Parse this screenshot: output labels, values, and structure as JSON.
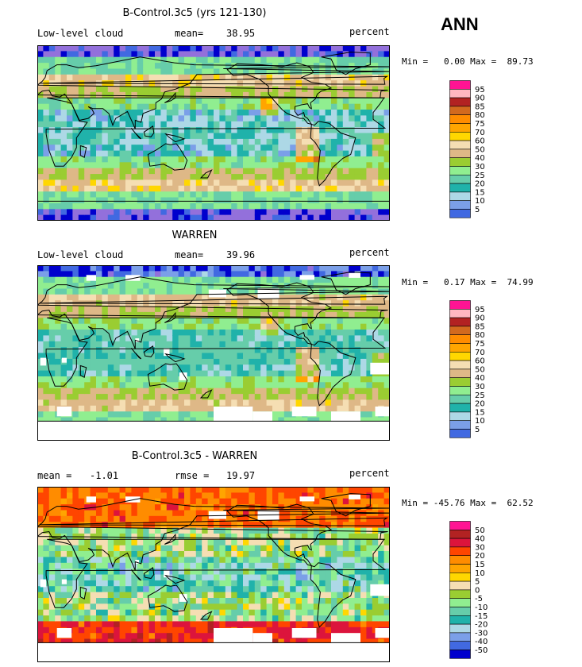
{
  "season": "ANN",
  "colors": {
    "abs": [
      "#9370db",
      "#0000cd",
      "#4169e1",
      "#7b9fe8",
      "#add8e6",
      "#20b2aa",
      "#66cdaa",
      "#90ee90",
      "#9acd32",
      "#deb887",
      "#f5deb3",
      "#ffd700",
      "#ffa500",
      "#ff8c00",
      "#d2691e",
      "#b22222",
      "#ffb6c1",
      "#ff1493"
    ],
    "diff": [
      "#9370db",
      "#0000cd",
      "#4169e1",
      "#7b9fe8",
      "#add8e6",
      "#20b2aa",
      "#66cdaa",
      "#90ee90",
      "#9acd32",
      "#f5deb3",
      "#ffd700",
      "#ffa500",
      "#ff8c00",
      "#ff4500",
      "#dc143c",
      "#b22222",
      "#ff1493"
    ]
  },
  "panels": [
    {
      "title": "B-Control.3c5 (yrs 121-130)",
      "left_label": "Low-level cloud",
      "mid_label": "mean=",
      "mid_value": "38.95",
      "right_label": "percent",
      "min_max": "Min =   0.00 Max =  89.73",
      "levels": [
        "95",
        "90",
        "85",
        "80",
        "75",
        "70",
        "60",
        "50",
        "40",
        "30",
        "25",
        "20",
        "15",
        "10",
        "5"
      ]
    },
    {
      "title": "WARREN",
      "left_label": "Low-level cloud",
      "mid_label": "mean=",
      "mid_value": "39.96",
      "right_label": "percent",
      "min_max": "Min =   0.17 Max =  74.99",
      "levels": [
        "95",
        "90",
        "85",
        "80",
        "75",
        "70",
        "60",
        "50",
        "40",
        "30",
        "25",
        "20",
        "15",
        "10",
        "5"
      ]
    },
    {
      "title": "B-Control.3c5 - WARREN",
      "left_label": "mean =",
      "left_value": "-1.01",
      "mid_label": "rmse =",
      "mid_value": "19.97",
      "right_label": "percent",
      "min_max": "Min = -45.76 Max =  62.52",
      "levels": [
        "50",
        "40",
        "30",
        "20",
        "15",
        "10",
        "5",
        "0",
        "-5",
        "-10",
        "-15",
        "-20",
        "-30",
        "-40",
        "-50"
      ]
    }
  ],
  "chart_data": [
    {
      "type": "heatmap",
      "title": "B-Control.3c5 (yrs 121-130)",
      "variable": "Low-level cloud",
      "units": "percent",
      "mean": 38.95,
      "min": 0.0,
      "max": 89.73,
      "contour_levels": [
        5,
        10,
        15,
        20,
        25,
        30,
        40,
        50,
        60,
        70,
        75,
        80,
        85,
        90,
        95
      ]
    },
    {
      "type": "heatmap",
      "title": "WARREN",
      "variable": "Low-level cloud",
      "units": "percent",
      "mean": 39.96,
      "min": 0.17,
      "max": 74.99,
      "contour_levels": [
        5,
        10,
        15,
        20,
        25,
        30,
        40,
        50,
        60,
        70,
        75,
        80,
        85,
        90,
        95
      ]
    },
    {
      "type": "heatmap",
      "title": "B-Control.3c5 - WARREN",
      "units": "percent",
      "mean": -1.01,
      "rmse": 19.97,
      "min": -45.76,
      "max": 62.52,
      "contour_levels": [
        -50,
        -40,
        -30,
        -20,
        -15,
        -10,
        -5,
        0,
        5,
        10,
        15,
        20,
        30,
        40,
        50
      ]
    }
  ]
}
